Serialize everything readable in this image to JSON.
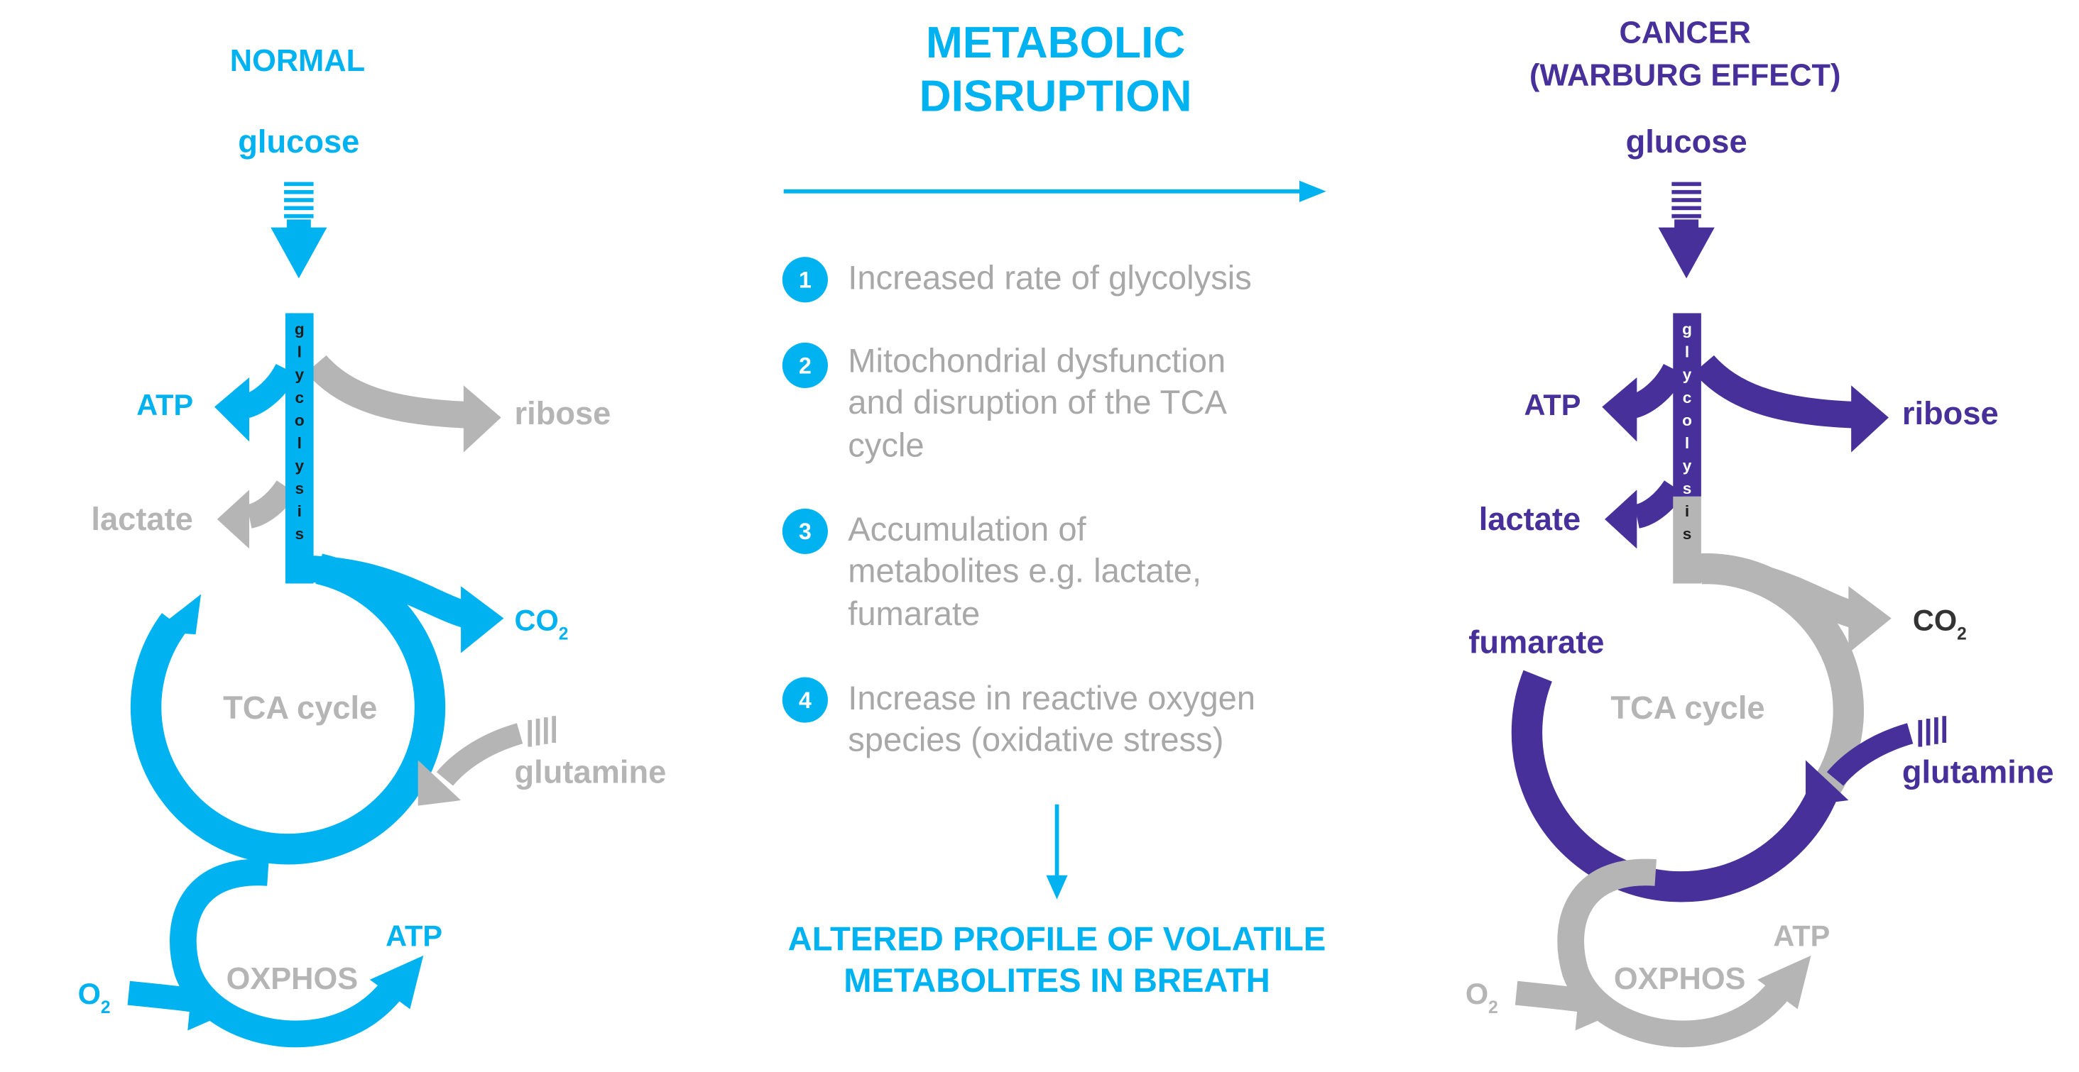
{
  "colors": {
    "normal": "#00B3F0",
    "cancer": "#47309A",
    "inactive": "#B5B5B5",
    "steps_text": "#A8A8A8",
    "dark_text": "#333333"
  },
  "normal": {
    "title": "NORMAL",
    "glucose": "glucose",
    "glycolysis_letters": [
      "g",
      "l",
      "y",
      "c",
      "o",
      "l",
      "y",
      "s",
      "i",
      "s"
    ],
    "atp_top": "ATP",
    "ribose": "ribose",
    "lactate": "lactate",
    "co2": "CO",
    "co2_sub": "2",
    "tca": "TCA cycle",
    "glutamine": "glutamine",
    "oxphos": "OXPHOS",
    "atp_bottom": "ATP",
    "o2": "O",
    "o2_sub": "2"
  },
  "middle": {
    "title_line1": "METABOLIC",
    "title_line2": "DISRUPTION",
    "steps": [
      {
        "num": "1",
        "lines": [
          "Increased rate of glycolysis"
        ]
      },
      {
        "num": "2",
        "lines": [
          "Mitochondrial dysfunction",
          "and disruption of the TCA",
          "cycle"
        ]
      },
      {
        "num": "3",
        "lines": [
          "Accumulation of",
          "metabolites e.g. lactate,",
          "fumarate"
        ]
      },
      {
        "num": "4",
        "lines": [
          "Increase in reactive oxygen",
          "species (oxidative stress)"
        ]
      }
    ],
    "result_line1": "ALTERED PROFILE OF VOLATILE",
    "result_line2": "METABOLITES IN BREATH"
  },
  "cancer": {
    "title_line1": "CANCER",
    "title_line2": "(WARBURG EFFECT)",
    "glucose": "glucose",
    "glycolysis_letters": [
      "g",
      "l",
      "y",
      "c",
      "o",
      "l",
      "y",
      "s",
      "i",
      "s"
    ],
    "atp_top": "ATP",
    "ribose": "ribose",
    "lactate": "lactate",
    "fumarate": "fumarate",
    "co2": "CO",
    "co2_sub": "2",
    "tca": "TCA cycle",
    "glutamine": "glutamine",
    "oxphos": "OXPHOS",
    "atp_bottom": "ATP",
    "o2": "O",
    "o2_sub": "2"
  }
}
